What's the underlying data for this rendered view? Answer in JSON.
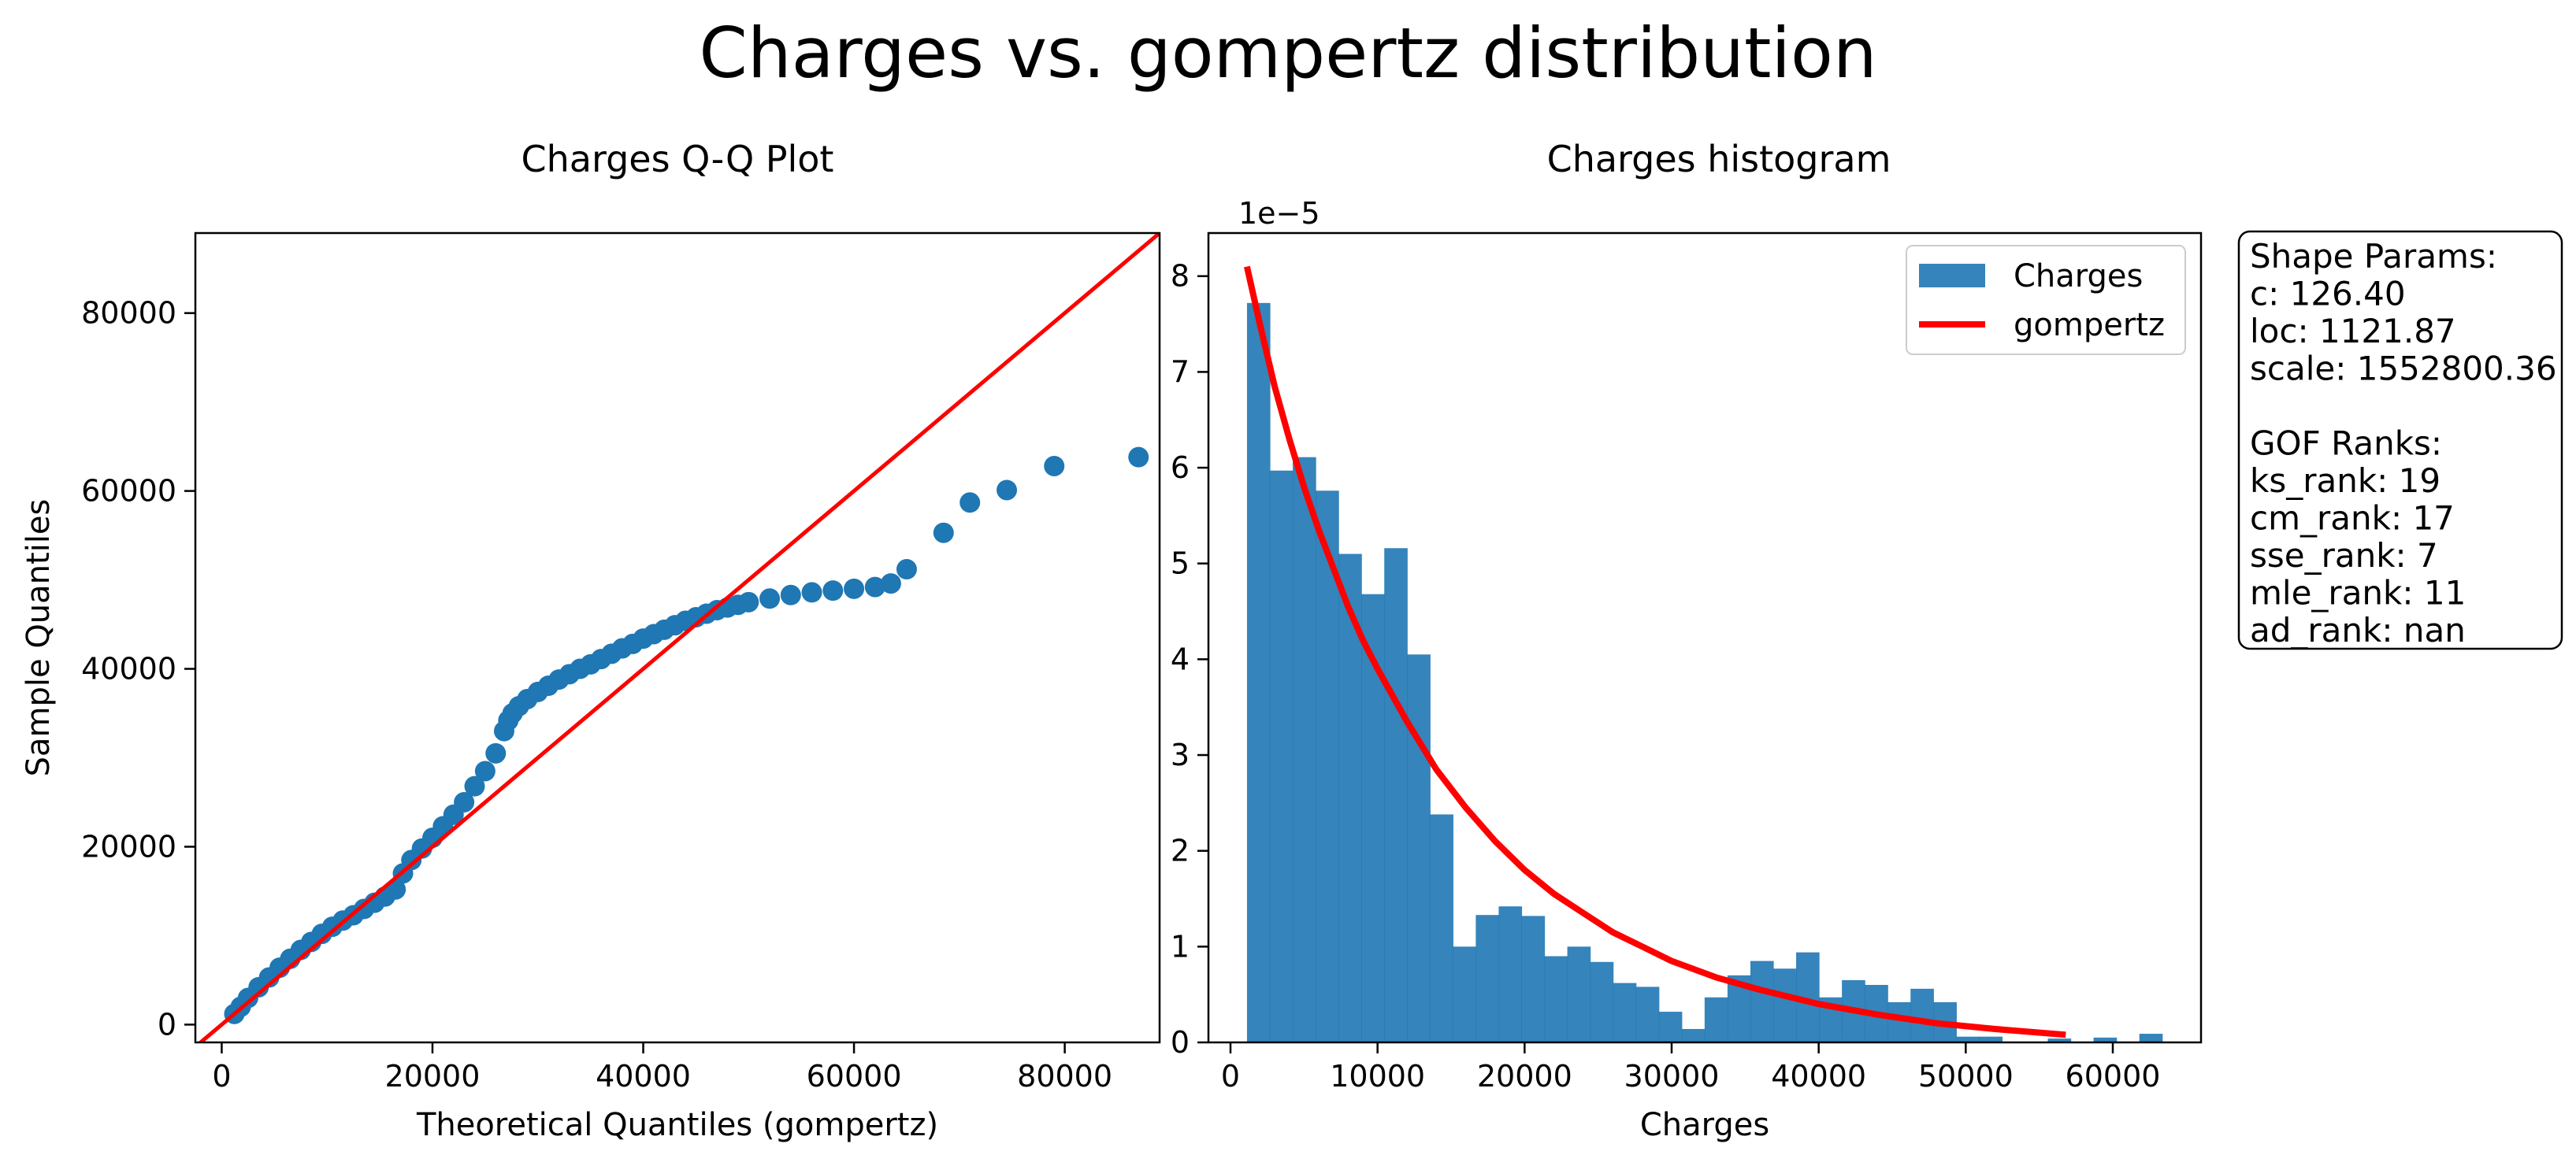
{
  "figure": {
    "title": "Charges vs. gompertz distribution"
  },
  "colors": {
    "points": "#1f77b4",
    "bars": "#1f77b4",
    "fit_line": "#ff0000",
    "reference_line": "#ff0000"
  },
  "chart_data": [
    {
      "type": "scatter",
      "title": "Charges Q-Q Plot",
      "xlabel": "Theoretical Quantiles (gompertz)",
      "ylabel": "Sample Quantiles",
      "xlim": [
        -2500,
        89000
      ],
      "ylim": [
        -2000,
        89000
      ],
      "xticks": [
        0,
        20000,
        40000,
        60000,
        80000
      ],
      "yticks": [
        0,
        20000,
        40000,
        60000,
        80000
      ],
      "xtick_labels": [
        "0",
        "20000",
        "40000",
        "60000",
        "80000"
      ],
      "ytick_labels": [
        "0",
        "20000",
        "40000",
        "60000",
        "80000"
      ],
      "reference_line": {
        "x": [
          -2500,
          89000
        ],
        "y": [
          -2500,
          89000
        ]
      },
      "points": {
        "x": [
          1200,
          1800,
          2500,
          3500,
          4500,
          5500,
          6500,
          7500,
          8500,
          9500,
          10500,
          11500,
          12500,
          13500,
          14500,
          15500,
          16500,
          17200,
          18000,
          19000,
          20000,
          21000,
          22000,
          23000,
          24000,
          25000,
          26000,
          26800,
          27200,
          27600,
          28200,
          29000,
          30000,
          31000,
          32000,
          33000,
          34000,
          35000,
          36000,
          37000,
          38000,
          39000,
          40000,
          41000,
          42000,
          43000,
          44000,
          45000,
          46000,
          47000,
          48000,
          49000,
          50000,
          52000,
          54000,
          56000,
          58000,
          60000,
          62000,
          63500,
          65000,
          68500,
          71000,
          74500,
          79000,
          87000
        ],
        "y": [
          1200,
          2000,
          3000,
          4200,
          5300,
          6400,
          7400,
          8400,
          9300,
          10200,
          11000,
          11700,
          12300,
          13000,
          13700,
          14400,
          15200,
          17000,
          18500,
          19800,
          21000,
          22300,
          23600,
          25000,
          26800,
          28500,
          30500,
          33000,
          34200,
          35000,
          35800,
          36600,
          37400,
          38100,
          38800,
          39400,
          40000,
          40500,
          41100,
          41700,
          42300,
          42800,
          43400,
          43900,
          44400,
          44900,
          45400,
          45800,
          46200,
          46600,
          46900,
          47200,
          47500,
          47900,
          48300,
          48600,
          48800,
          49000,
          49200,
          49600,
          51200,
          55300,
          58700,
          60100,
          62800,
          63800
        ]
      }
    },
    {
      "type": "bar",
      "title": "Charges histogram",
      "xlabel": "Charges",
      "ylabel": "",
      "y_offset_label": "1e−5",
      "xlim": [
        -1500,
        66000
      ],
      "ylim": [
        0,
        8.45
      ],
      "xticks": [
        0,
        10000,
        20000,
        30000,
        40000,
        50000,
        60000
      ],
      "yticks": [
        0,
        1,
        2,
        3,
        4,
        5,
        6,
        7,
        8
      ],
      "xtick_labels": [
        "0",
        "10000",
        "20000",
        "30000",
        "40000",
        "50000",
        "60000"
      ],
      "ytick_labels": [
        "0",
        "1",
        "2",
        "3",
        "4",
        "5",
        "6",
        "7",
        "8"
      ],
      "bin_edges": [
        1121.87,
        2678,
        4234,
        5790,
        7346,
        8902,
        10458,
        12014,
        13570,
        15126,
        16682,
        18238,
        19794,
        21350,
        22906,
        24462,
        26018,
        27574,
        29130,
        30686,
        32242,
        33798,
        35354,
        36910,
        38466,
        40022,
        41578,
        43134,
        44690,
        46246,
        47802,
        49358,
        50914,
        52470,
        54026,
        55582,
        57138,
        58694,
        60250,
        61806,
        63362
      ],
      "values": [
        7.72,
        5.97,
        6.11,
        5.76,
        5.1,
        4.68,
        5.16,
        4.05,
        2.38,
        1.0,
        1.33,
        1.42,
        1.32,
        0.9,
        1.0,
        0.84,
        0.62,
        0.58,
        0.32,
        0.14,
        0.47,
        0.7,
        0.85,
        0.77,
        0.94,
        0.47,
        0.65,
        0.6,
        0.42,
        0.56,
        0.42,
        0.06,
        0.06,
        0.0,
        0.0,
        0.04,
        0.0,
        0.05,
        0.0,
        0.09
      ],
      "series": [
        {
          "name": "Charges",
          "kind": "histogram"
        },
        {
          "name": "gompertz",
          "kind": "line",
          "x": [
            1121.87,
            2000,
            3000,
            4000,
            5000,
            6000,
            7000,
            8000,
            9000,
            10000,
            12000,
            14000,
            16000,
            18000,
            20000,
            22000,
            24000,
            26000,
            28000,
            30000,
            33000,
            36000,
            40000,
            44000,
            48000,
            52000,
            56800
          ],
          "y": [
            8.1,
            7.5,
            6.85,
            6.3,
            5.8,
            5.35,
            4.95,
            4.55,
            4.2,
            3.9,
            3.35,
            2.85,
            2.45,
            2.1,
            1.8,
            1.55,
            1.35,
            1.15,
            1.0,
            0.85,
            0.68,
            0.55,
            0.4,
            0.29,
            0.2,
            0.14,
            0.08
          ]
        }
      ],
      "legend": {
        "placement": "top-right",
        "entries": [
          "Charges",
          "gompertz"
        ]
      }
    }
  ],
  "info_box": {
    "lines": [
      "Shape Params:",
      "c: 126.40",
      "loc: 1121.87",
      "scale: 1552800.36",
      "",
      "GOF Ranks:",
      "ks_rank: 19",
      "cm_rank: 17",
      "sse_rank: 7",
      "mle_rank: 11",
      "ad_rank: nan"
    ]
  }
}
